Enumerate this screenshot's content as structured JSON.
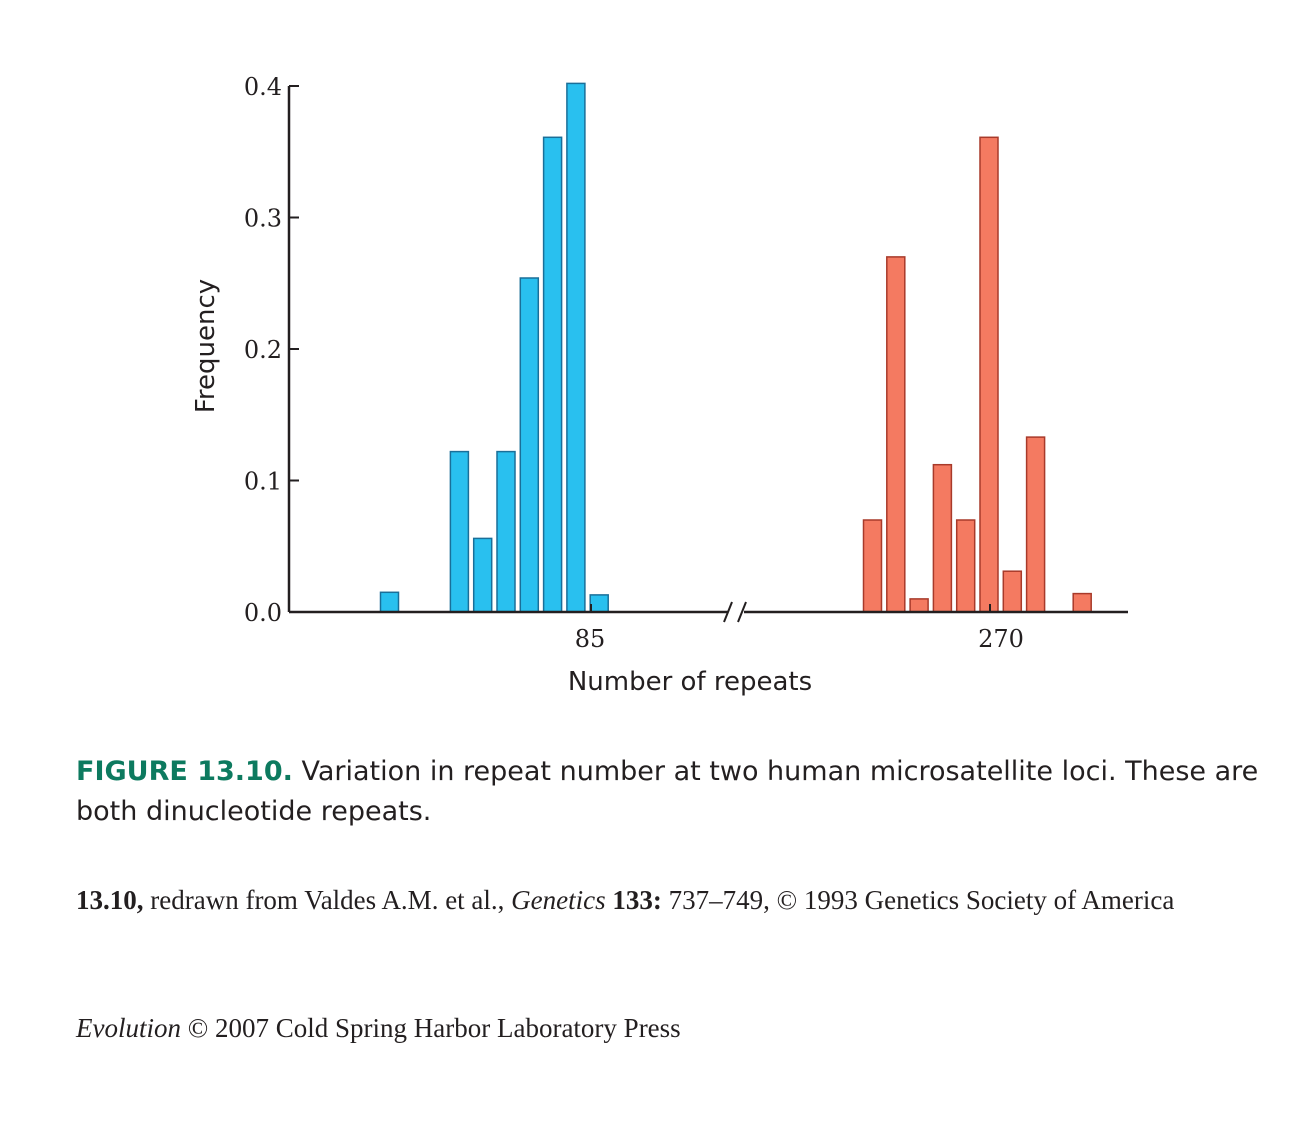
{
  "chart_data": {
    "type": "bar",
    "xlabel": "Number of repeats",
    "ylabel": "Frequency",
    "ylim": [
      0,
      0.4
    ],
    "yticks": [
      "0.0",
      "0.1",
      "0.2",
      "0.3",
      "0.4"
    ],
    "xtick_labels": [
      "85",
      "270"
    ],
    "axis_break": true,
    "grid": false,
    "series": [
      {
        "color": "#29c0ef",
        "stroke": "#1a6f99",
        "values": [
          0.015,
          0,
          0,
          0.122,
          0.056,
          0.122,
          0.254,
          0.361,
          0.402,
          0.013
        ]
      },
      {
        "color": "#f47a61",
        "stroke": "#a83a2a",
        "values": [
          0.07,
          0.27,
          0.01,
          0.112,
          0.07,
          0.361,
          0.031,
          0.133,
          0,
          0.014
        ]
      }
    ]
  },
  "caption": {
    "figure_label": "FIGURE 13.10.",
    "text": " Variation in repeat number at two human microsatellite loci. These are both dinucleotide repeats."
  },
  "credit": {
    "id": "13.10,",
    "text1": " redrawn from Valdes A.M. et al., ",
    "journal": "Genetics",
    "volume": " 133:",
    "text2": " 737–749, © 1993 Genetics Society of America"
  },
  "press": {
    "title": "Evolution",
    "text": " © 2007 Cold Spring Harbor Laboratory Press"
  }
}
